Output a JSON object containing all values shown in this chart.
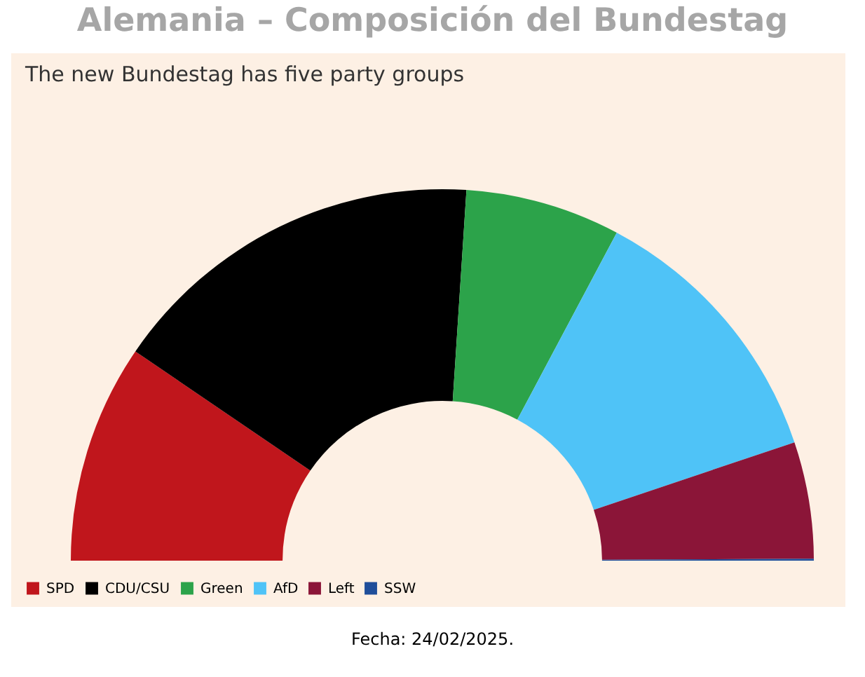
{
  "chart_data": {
    "type": "donut",
    "title": "Alemania – Composición del Bundestag",
    "subtitle": "The new Bundestag has five party groups",
    "categories": [
      "SPD",
      "CDU/CSU",
      "Green",
      "AfD",
      "Left",
      "SSW"
    ],
    "values": [
      19.05,
      33.02,
      13.49,
      24.12,
      10.16,
      0.16
    ],
    "colors": [
      "#c0161c",
      "#000000",
      "#2ca34a",
      "#4fc3f7",
      "#8b1538",
      "#1f4e9a"
    ],
    "legend": "bottom",
    "annotations": [
      "Fecha: 24/02/2025."
    ]
  }
}
